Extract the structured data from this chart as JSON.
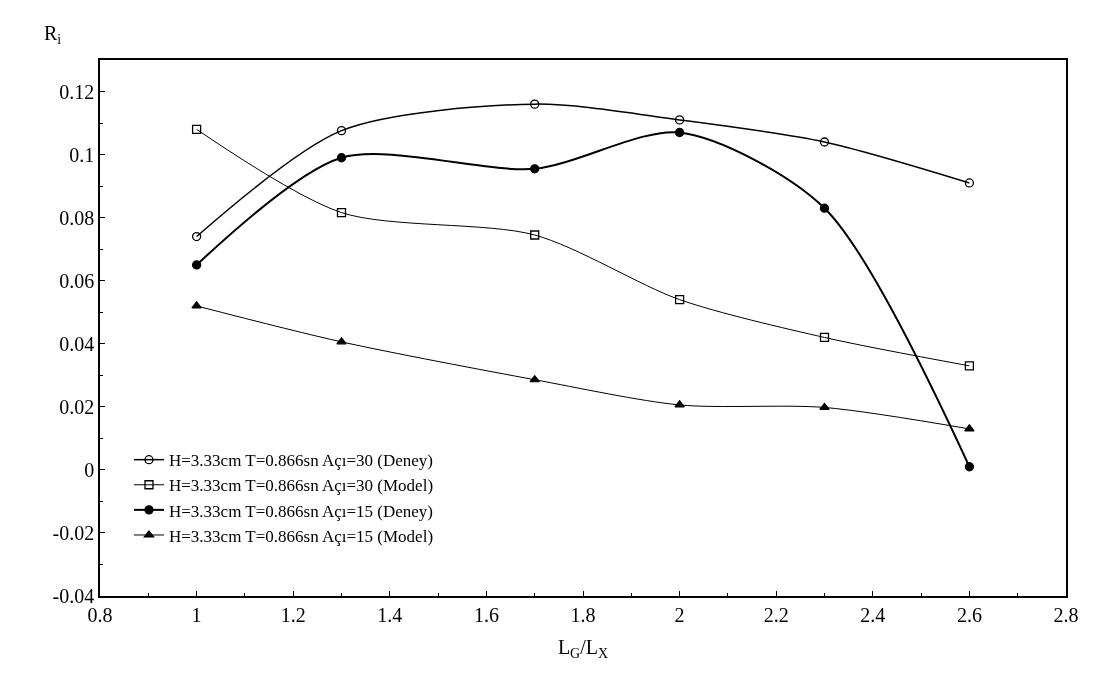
{
  "chart_data": {
    "type": "line",
    "xlabel": "L$_{G}$/L$_{X}$",
    "ylabel": "R$_{i}$",
    "x": [
      1,
      1.3,
      1.7,
      2,
      2.3,
      2.6
    ],
    "series": [
      {
        "name": "H=3.33cm T=0.866sn Açı=30 (Deney)",
        "color": "#000000",
        "marker": "circle",
        "values": [
          0.074,
          0.1076,
          0.116,
          0.111,
          0.104,
          0.091
        ]
      },
      {
        "name": "H=3.33cm T=0.866sn Açı=30 (Model)",
        "color": "#000000",
        "marker": "square",
        "values": [
          0.108,
          0.0816,
          0.0745,
          0.054,
          0.042,
          0.033
        ]
      },
      {
        "name": "H=3.33cm T=0.866sn Açı=15 (Deney)",
        "color": "#000000",
        "marker": "circle",
        "values": [
          0.065,
          0.099,
          0.0955,
          0.107,
          0.083,
          0.001
        ]
      },
      {
        "name": "H=3.33cm T=0.866sn Açı=15 (Model)",
        "color": "#000000",
        "marker": "triangle",
        "values": [
          0.052,
          0.0406,
          0.0286,
          0.0206,
          0.0198,
          0.013
        ]
      }
    ],
    "xlim": [
      0.8,
      2.8
    ],
    "xticks": [
      0.8,
      1,
      1.2,
      1.4,
      1.6,
      1.8,
      2,
      2.2,
      2.4,
      2.6,
      2.8
    ],
    "ylim": [
      -0.04,
      0.13
    ],
    "yticks": [
      -0.04,
      -0.02,
      0,
      0.02,
      0.04,
      0.06,
      0.08,
      0.1,
      0.12
    ],
    "legend": "bottom left",
    "line_style": "solid"
  }
}
